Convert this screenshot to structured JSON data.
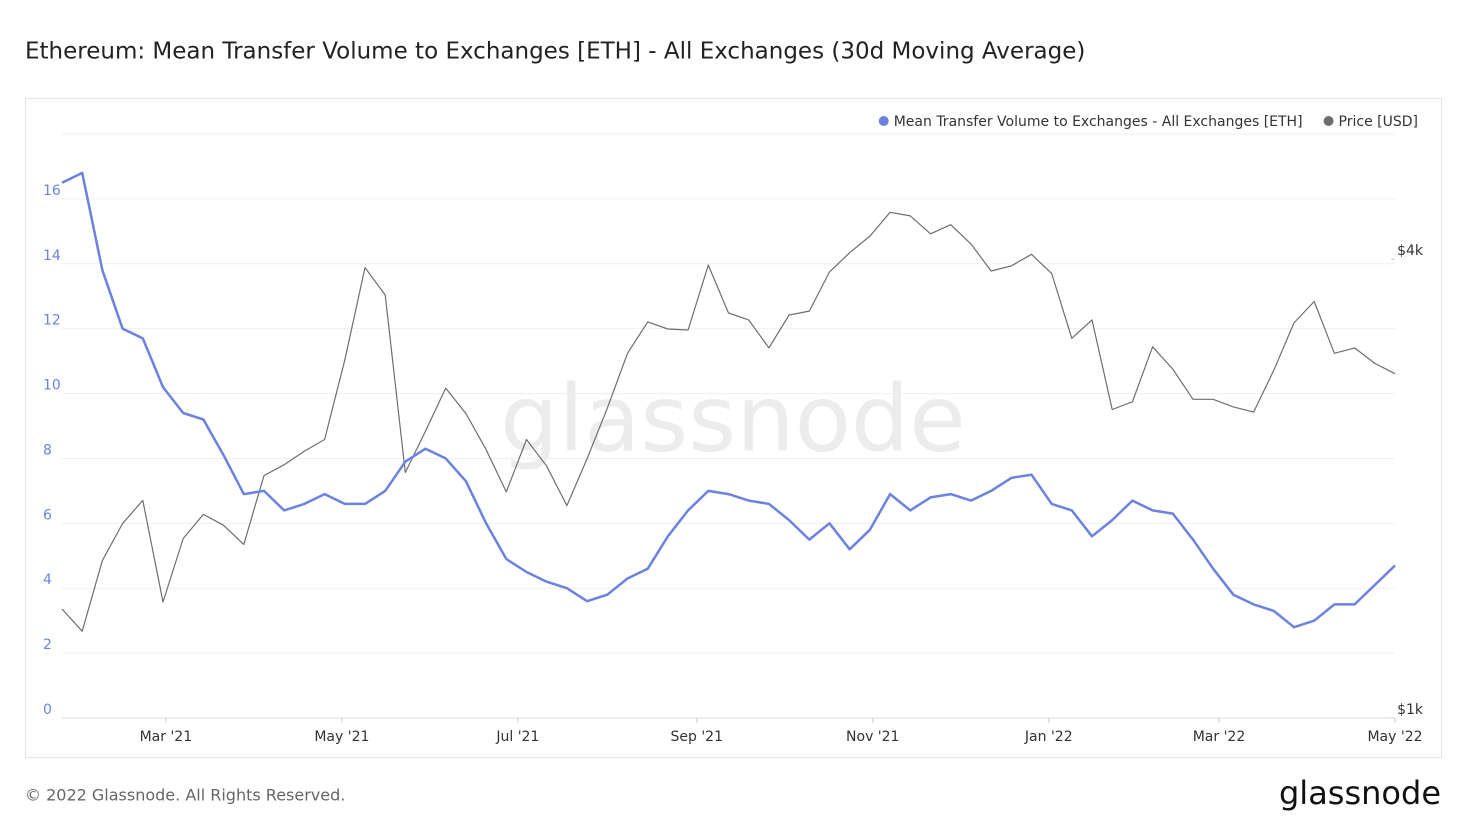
{
  "chart_data": {
    "type": "line",
    "title": "Ethereum: Mean Transfer Volume to Exchanges [ETH] - All Exchanges (30d Moving Average)",
    "watermark": "glassnode",
    "copyright": "© 2022 Glassnode. All Rights Reserved.",
    "brand": "glassnode",
    "legend": "top-right",
    "grid": true,
    "x": [
      "2021-01-24",
      "2021-01-31",
      "2021-02-07",
      "2021-02-14",
      "2021-02-21",
      "2021-02-28",
      "2021-03-07",
      "2021-03-14",
      "2021-03-21",
      "2021-03-28",
      "2021-04-04",
      "2021-04-11",
      "2021-04-18",
      "2021-04-25",
      "2021-05-02",
      "2021-05-09",
      "2021-05-16",
      "2021-05-23",
      "2021-05-30",
      "2021-06-06",
      "2021-06-13",
      "2021-06-20",
      "2021-06-27",
      "2021-07-04",
      "2021-07-11",
      "2021-07-18",
      "2021-07-25",
      "2021-08-01",
      "2021-08-08",
      "2021-08-15",
      "2021-08-22",
      "2021-08-29",
      "2021-09-05",
      "2021-09-12",
      "2021-09-19",
      "2021-09-26",
      "2021-10-03",
      "2021-10-10",
      "2021-10-17",
      "2021-10-24",
      "2021-10-31",
      "2021-11-07",
      "2021-11-14",
      "2021-11-21",
      "2021-11-28",
      "2021-12-05",
      "2021-12-12",
      "2021-12-19",
      "2021-12-26",
      "2022-01-02",
      "2022-01-09",
      "2022-01-16",
      "2022-01-23",
      "2022-01-30",
      "2022-02-06",
      "2022-02-13",
      "2022-02-20",
      "2022-02-27",
      "2022-03-06",
      "2022-03-13",
      "2022-03-20",
      "2022-03-27",
      "2022-04-03",
      "2022-04-10",
      "2022-04-17",
      "2022-04-24",
      "2022-05-01"
    ],
    "xlim": [
      "2021-01-24",
      "2022-05-01"
    ],
    "xticks": [
      {
        "value": "2021-03-01",
        "label": "Mar '21"
      },
      {
        "value": "2021-05-01",
        "label": "May '21"
      },
      {
        "value": "2021-07-01",
        "label": "Jul '21"
      },
      {
        "value": "2021-09-01",
        "label": "Sep '21"
      },
      {
        "value": "2021-11-01",
        "label": "Nov '21"
      },
      {
        "value": "2022-01-01",
        "label": "Jan '22"
      },
      {
        "value": "2022-03-01",
        "label": "Mar '22"
      },
      {
        "value": "2022-05-01",
        "label": "May '22"
      }
    ],
    "ylim": [
      0,
      18
    ],
    "yticks": [
      0,
      2,
      4,
      6,
      8,
      10,
      12,
      14,
      16
    ],
    "y2lim": [
      1000,
      5840
    ],
    "y2scale": "log",
    "y2ticks": [
      {
        "value": 1000,
        "label": "$1k"
      },
      {
        "value": 4000,
        "label": "$4k"
      }
    ],
    "series": [
      {
        "name": "Mean Transfer Volume to Exchanges - All Exchanges [ETH]",
        "color": "#6b82e0",
        "values": [
          16.5,
          16.8,
          13.8,
          12.0,
          11.7,
          10.2,
          9.4,
          9.2,
          8.1,
          6.9,
          7.0,
          6.4,
          6.6,
          6.9,
          6.6,
          6.6,
          7.0,
          7.9,
          8.3,
          8.0,
          7.3,
          6.0,
          4.9,
          4.5,
          4.2,
          4.0,
          3.6,
          3.8,
          4.3,
          4.6,
          5.6,
          6.4,
          7.0,
          6.9,
          6.7,
          6.6,
          6.1,
          5.5,
          6.0,
          5.2,
          5.8,
          6.9,
          6.4,
          6.8,
          6.9,
          6.7,
          7.0,
          7.4,
          7.5,
          6.6,
          6.4,
          5.6,
          6.1,
          6.7,
          6.4,
          6.3,
          5.5,
          4.6,
          3.8,
          3.5,
          3.3,
          2.8,
          3.0,
          3.5,
          3.5,
          4.1,
          4.7
        ]
      },
      {
        "name": "Price [USD]",
        "color": "#6e6e6e",
        "axis": "y2",
        "values": [
          1390,
          1300,
          1610,
          1800,
          1930,
          1420,
          1720,
          1850,
          1790,
          1690,
          2080,
          2150,
          2240,
          2320,
          2950,
          3900,
          3590,
          2100,
          2380,
          2710,
          2510,
          2250,
          1980,
          2320,
          2140,
          1900,
          2190,
          2550,
          3010,
          3310,
          3240,
          3230,
          3930,
          3400,
          3330,
          3060,
          3380,
          3420,
          3850,
          4080,
          4290,
          4610,
          4560,
          4320,
          4440,
          4190,
          3860,
          3920,
          4060,
          3830,
          3150,
          3330,
          2540,
          2600,
          3070,
          2870,
          2620,
          2620,
          2560,
          2520,
          2860,
          3300,
          3520,
          3010,
          3060,
          2920,
          2830
        ]
      }
    ]
  }
}
